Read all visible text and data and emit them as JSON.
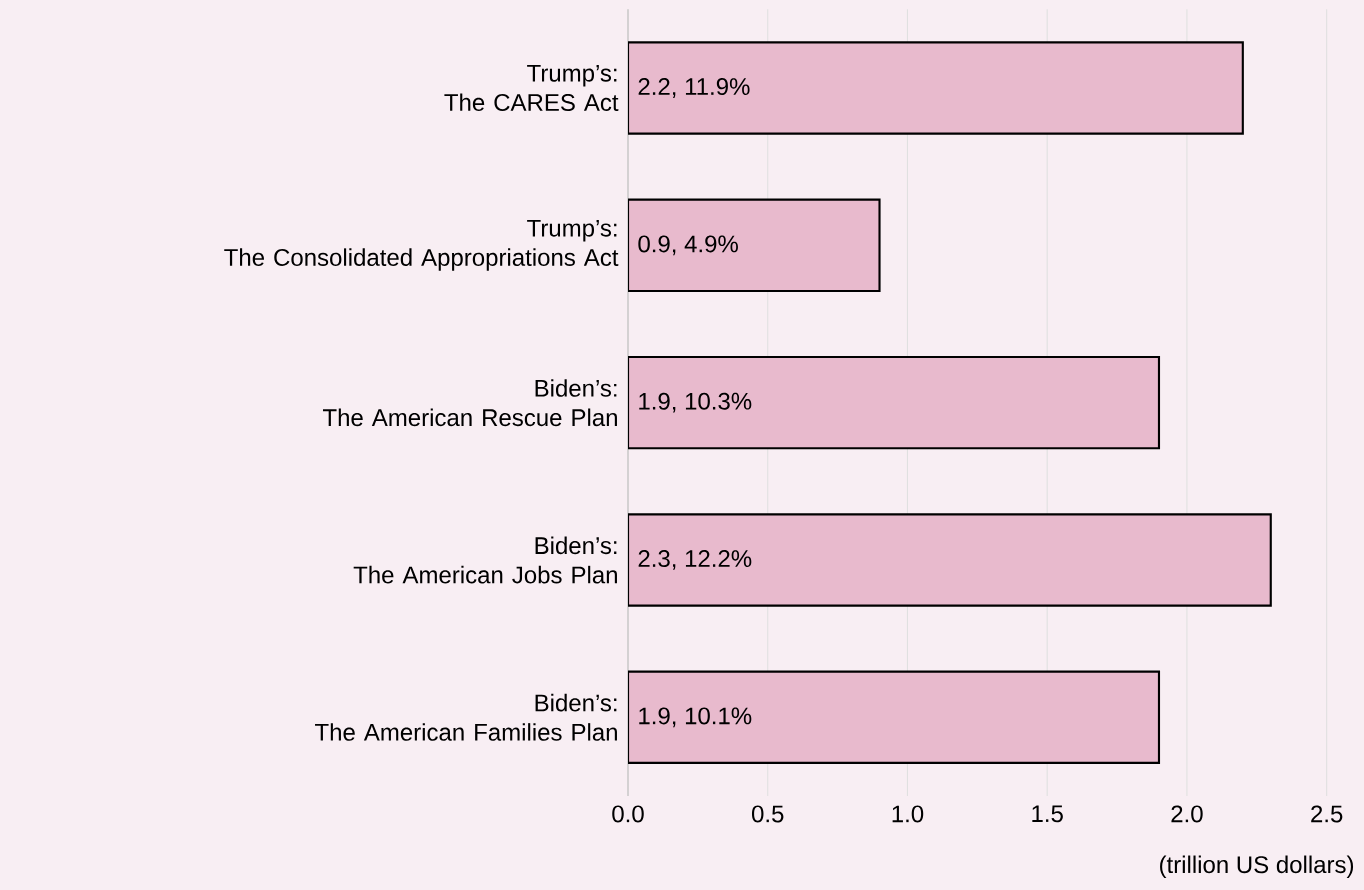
{
  "chart_data": {
    "type": "bar",
    "orientation": "horizontal",
    "xlabel": "(trillion US dollars)",
    "categories": [
      "Trump’s:\nThe CARES Act",
      "Trump’s:\nThe Consolidated Appropriations Act",
      "Biden’s:\nThe American Rescue Plan",
      "Biden’s:\nThe American Jobs Plan",
      "Biden’s:\nThe American Families Plan"
    ],
    "values": [
      2.2,
      0.9,
      1.9,
      2.3,
      1.9
    ],
    "value_labels": [
      "2.2, 11.9%",
      "0.9, 4.9%",
      "1.9, 10.3%",
      "2.3, 12.2%",
      "1.9, 10.1%"
    ],
    "color": "#e8bacd",
    "xlim": [
      0,
      2.5
    ],
    "xticks": [
      {
        "value": 0,
        "label": "0.0"
      },
      {
        "value": 0.5,
        "label": "0.5"
      },
      {
        "value": 1,
        "label": "1.0"
      },
      {
        "value": 1.5,
        "label": "1.5"
      },
      {
        "value": 2,
        "label": "2.0"
      },
      {
        "value": 2.5,
        "label": "2.5"
      }
    ],
    "grid": "x"
  }
}
